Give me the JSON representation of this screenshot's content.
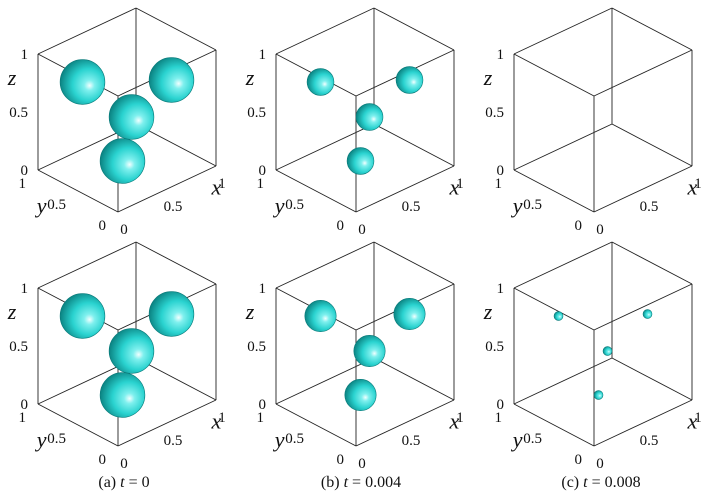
{
  "figure": {
    "colors": {
      "sphere_highlight": "#f2ffff",
      "sphere_mid": "#2ad3d0",
      "sphere_shadow": "#087b7a"
    },
    "axes_labels": {
      "x": "x",
      "y": "y",
      "z": "z"
    },
    "ticks": {
      "z": [
        "1",
        "0.5",
        "0"
      ],
      "y": [
        "1",
        "0.5",
        "0"
      ],
      "x": [
        "0",
        "0.5",
        "1"
      ]
    },
    "captions": [
      {
        "label": "(a) ",
        "var": "t",
        "value": " = 0"
      },
      {
        "label": "(b) ",
        "var": "t",
        "value": " = 0.004"
      },
      {
        "label": "(c) ",
        "var": "t",
        "value": " = 0.008"
      }
    ],
    "panels": [
      {
        "row": 0,
        "col": 0,
        "sphere_radius": 0.2
      },
      {
        "row": 0,
        "col": 1,
        "sphere_radius": 0.12
      },
      {
        "row": 0,
        "col": 2,
        "sphere_radius": 0
      },
      {
        "row": 1,
        "col": 0,
        "sphere_radius": 0.2
      },
      {
        "row": 1,
        "col": 1,
        "sphere_radius": 0.14
      },
      {
        "row": 1,
        "col": 2,
        "sphere_radius": 0.04
      }
    ]
  }
}
